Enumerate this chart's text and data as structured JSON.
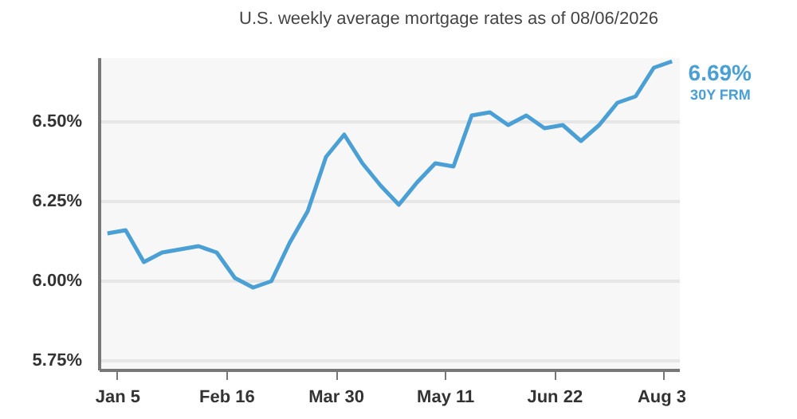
{
  "chart_data": {
    "type": "line",
    "subtitle": "U.S. weekly average mortgage rates as of 08/06/2026",
    "x": [
      "2026-01-01",
      "2026-01-08",
      "2026-01-15",
      "2026-01-22",
      "2026-01-29",
      "2026-02-05",
      "2026-02-12",
      "2026-02-19",
      "2026-02-26",
      "2026-03-05",
      "2026-03-12",
      "2026-03-19",
      "2026-03-26",
      "2026-04-02",
      "2026-04-09",
      "2026-04-16",
      "2026-04-23",
      "2026-04-30",
      "2026-05-07",
      "2026-05-14",
      "2026-05-21",
      "2026-05-28",
      "2026-06-04",
      "2026-06-11",
      "2026-06-18",
      "2026-06-25",
      "2026-07-02",
      "2026-07-09",
      "2026-07-16",
      "2026-07-23",
      "2026-07-30",
      "2026-08-06"
    ],
    "series": [
      {
        "name": "30Y FRM",
        "color": "#4a9fd5",
        "values": [
          6.15,
          6.16,
          6.06,
          6.09,
          6.1,
          6.11,
          6.09,
          6.01,
          5.98,
          6.0,
          6.12,
          6.22,
          6.39,
          6.46,
          6.37,
          6.3,
          6.24,
          6.31,
          6.37,
          6.36,
          6.52,
          6.53,
          6.49,
          6.52,
          6.48,
          6.49,
          6.44,
          6.49,
          6.56,
          6.58,
          6.67,
          6.69
        ],
        "value_labels": [
          null,
          null,
          null,
          null,
          null,
          null,
          null,
          null,
          null,
          null,
          null,
          null,
          null,
          null,
          null,
          null,
          null,
          null,
          null,
          null,
          null,
          null,
          null,
          null,
          null,
          null,
          null,
          null,
          null,
          null,
          null,
          "6.69%"
        ]
      }
    ],
    "xlim": [
      "2025-12-29",
      "2026-08-09"
    ],
    "xticks": [
      {
        "value": "2026-01-05",
        "label": "Jan 5"
      },
      {
        "value": "2026-02-16",
        "label": "Feb 16"
      },
      {
        "value": "2026-03-30",
        "label": "Mar 30"
      },
      {
        "value": "2026-05-11",
        "label": "May 11"
      },
      {
        "value": "2026-06-22",
        "label": "Jun 22"
      },
      {
        "value": "2026-08-03",
        "label": "Aug 3"
      }
    ],
    "ylim": [
      5.72,
      6.7
    ],
    "yticks": [
      {
        "value": 5.75,
        "label": "5.75%"
      },
      {
        "value": 6.0,
        "label": "6.00%"
      },
      {
        "value": 6.25,
        "label": "6.25%"
      },
      {
        "value": 6.5,
        "label": "6.50%"
      }
    ],
    "grid": "y",
    "legend": false,
    "marker": "none",
    "line_style": "solid"
  }
}
